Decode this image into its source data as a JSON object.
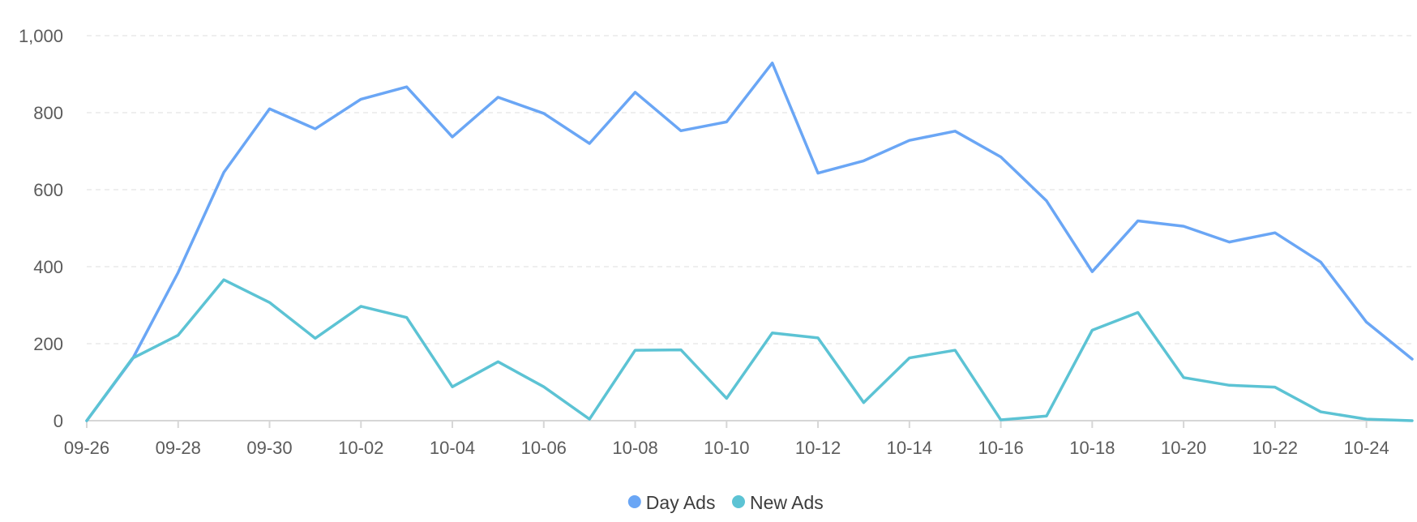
{
  "chart_data": {
    "type": "line",
    "x": [
      "09-26",
      "09-27",
      "09-28",
      "09-29",
      "09-30",
      "10-01",
      "10-02",
      "10-03",
      "10-04",
      "10-05",
      "10-06",
      "10-07",
      "10-08",
      "10-09",
      "10-10",
      "10-11",
      "10-12",
      "10-13",
      "10-14",
      "10-15",
      "10-16",
      "10-17",
      "10-18",
      "10-19",
      "10-20",
      "10-21",
      "10-22",
      "10-23",
      "10-24",
      "10-25"
    ],
    "x_tick_labels": [
      "09-26",
      "09-28",
      "09-30",
      "10-02",
      "10-04",
      "10-06",
      "10-08",
      "10-10",
      "10-12",
      "10-14",
      "10-16",
      "10-18",
      "10-20",
      "10-22",
      "10-24"
    ],
    "y_tick_labels": [
      "0",
      "200",
      "400",
      "600",
      "800",
      "1,000"
    ],
    "y_ticks": [
      0,
      200,
      400,
      600,
      800,
      1000
    ],
    "ylim": [
      0,
      1000
    ],
    "grid": true,
    "legend_position": "bottom-center",
    "series": [
      {
        "name": "Day Ads",
        "color": "#6aa6f5",
        "values": [
          0,
          160,
          385,
          645,
          810,
          758,
          835,
          867,
          737,
          840,
          798,
          720,
          853,
          753,
          776,
          929,
          643,
          675,
          728,
          752,
          685,
          571,
          387,
          519,
          505,
          464,
          488,
          412,
          256,
          160
        ]
      },
      {
        "name": "New Ads",
        "color": "#5cc3d4",
        "values": [
          0,
          162,
          222,
          366,
          307,
          214,
          297,
          268,
          88,
          153,
          88,
          4,
          183,
          184,
          58,
          228,
          215,
          47,
          163,
          183,
          2,
          12,
          235,
          281,
          112,
          92,
          87,
          23,
          4,
          0
        ]
      }
    ]
  }
}
